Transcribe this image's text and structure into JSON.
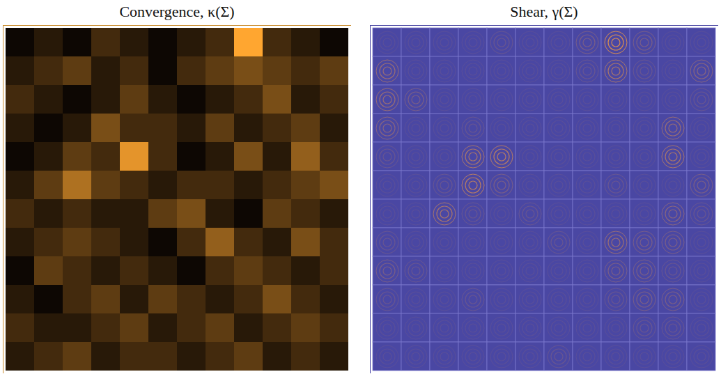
{
  "chart_data": [
    {
      "type": "heatmap",
      "title": "Convergence, κ(Σ)",
      "tick_labels": false,
      "cells": [
        [
          0.3,
          0.35,
          0.3,
          0.4,
          0.35,
          0.3,
          0.35,
          0.4,
          0.75,
          0.4,
          0.35,
          0.3
        ],
        [
          0.35,
          0.4,
          0.45,
          0.35,
          0.4,
          0.3,
          0.4,
          0.45,
          0.5,
          0.45,
          0.4,
          0.45
        ],
        [
          0.4,
          0.35,
          0.3,
          0.35,
          0.45,
          0.35,
          0.3,
          0.35,
          0.4,
          0.5,
          0.35,
          0.4
        ],
        [
          0.35,
          0.3,
          0.35,
          0.5,
          0.4,
          0.4,
          0.35,
          0.45,
          0.35,
          0.4,
          0.45,
          0.35
        ],
        [
          0.3,
          0.35,
          0.45,
          0.4,
          0.7,
          0.4,
          0.3,
          0.35,
          0.5,
          0.35,
          0.55,
          0.4
        ],
        [
          0.35,
          0.45,
          0.6,
          0.45,
          0.4,
          0.35,
          0.4,
          0.4,
          0.35,
          0.4,
          0.45,
          0.5
        ],
        [
          0.4,
          0.35,
          0.4,
          0.35,
          0.35,
          0.45,
          0.5,
          0.35,
          0.3,
          0.45,
          0.4,
          0.35
        ],
        [
          0.35,
          0.4,
          0.45,
          0.4,
          0.35,
          0.3,
          0.4,
          0.55,
          0.4,
          0.35,
          0.5,
          0.4
        ],
        [
          0.3,
          0.45,
          0.4,
          0.35,
          0.4,
          0.35,
          0.3,
          0.4,
          0.45,
          0.4,
          0.35,
          0.4
        ],
        [
          0.35,
          0.3,
          0.4,
          0.45,
          0.35,
          0.45,
          0.4,
          0.35,
          0.4,
          0.5,
          0.4,
          0.35
        ],
        [
          0.4,
          0.35,
          0.35,
          0.4,
          0.45,
          0.35,
          0.4,
          0.45,
          0.35,
          0.4,
          0.45,
          0.4
        ],
        [
          0.35,
          0.4,
          0.45,
          0.35,
          0.4,
          0.4,
          0.35,
          0.4,
          0.45,
          0.35,
          0.4,
          0.35
        ]
      ]
    },
    {
      "type": "shear",
      "title": "Shear, γ(Σ)",
      "tick_labels": false,
      "cells": [
        [
          0.1,
          0.1,
          0.1,
          0.1,
          0.2,
          0.1,
          0.1,
          0.3,
          0.9,
          0.3,
          0.1,
          0.1
        ],
        [
          0.5,
          0.1,
          0.1,
          0.1,
          0.1,
          0.1,
          0.1,
          0.2,
          0.6,
          0.2,
          0.1,
          0.4
        ],
        [
          0.5,
          0.3,
          0.1,
          0.1,
          0.1,
          0.1,
          0.1,
          0.1,
          0.1,
          0.1,
          0.1,
          0.2
        ],
        [
          0.4,
          0.1,
          0.1,
          0.2,
          0.1,
          0.1,
          0.1,
          0.1,
          0.1,
          0.1,
          0.5,
          0.1
        ],
        [
          0.2,
          0.1,
          0.1,
          0.6,
          0.7,
          0.1,
          0.1,
          0.1,
          0.1,
          0.1,
          0.6,
          0.1
        ],
        [
          0.1,
          0.1,
          0.2,
          0.7,
          0.3,
          0.1,
          0.1,
          0.1,
          0.2,
          0.1,
          0.1,
          0.3
        ],
        [
          0.1,
          0.1,
          0.6,
          0.2,
          0.1,
          0.2,
          0.1,
          0.1,
          0.1,
          0.1,
          0.4,
          0.2
        ],
        [
          0.2,
          0.1,
          0.1,
          0.1,
          0.1,
          0.1,
          0.2,
          0.1,
          0.5,
          0.3,
          0.3,
          0.1
        ],
        [
          0.3,
          0.2,
          0.1,
          0.1,
          0.1,
          0.1,
          0.1,
          0.1,
          0.3,
          0.3,
          0.2,
          0.1
        ],
        [
          0.2,
          0.1,
          0.1,
          0.2,
          0.1,
          0.1,
          0.1,
          0.1,
          0.2,
          0.3,
          0.3,
          0.1
        ],
        [
          0.1,
          0.1,
          0.1,
          0.1,
          0.1,
          0.1,
          0.1,
          0.1,
          0.1,
          0.2,
          0.2,
          0.1
        ],
        [
          0.1,
          0.1,
          0.1,
          0.1,
          0.1,
          0.1,
          0.2,
          0.1,
          0.1,
          0.1,
          0.1,
          0.1
        ]
      ]
    }
  ]
}
